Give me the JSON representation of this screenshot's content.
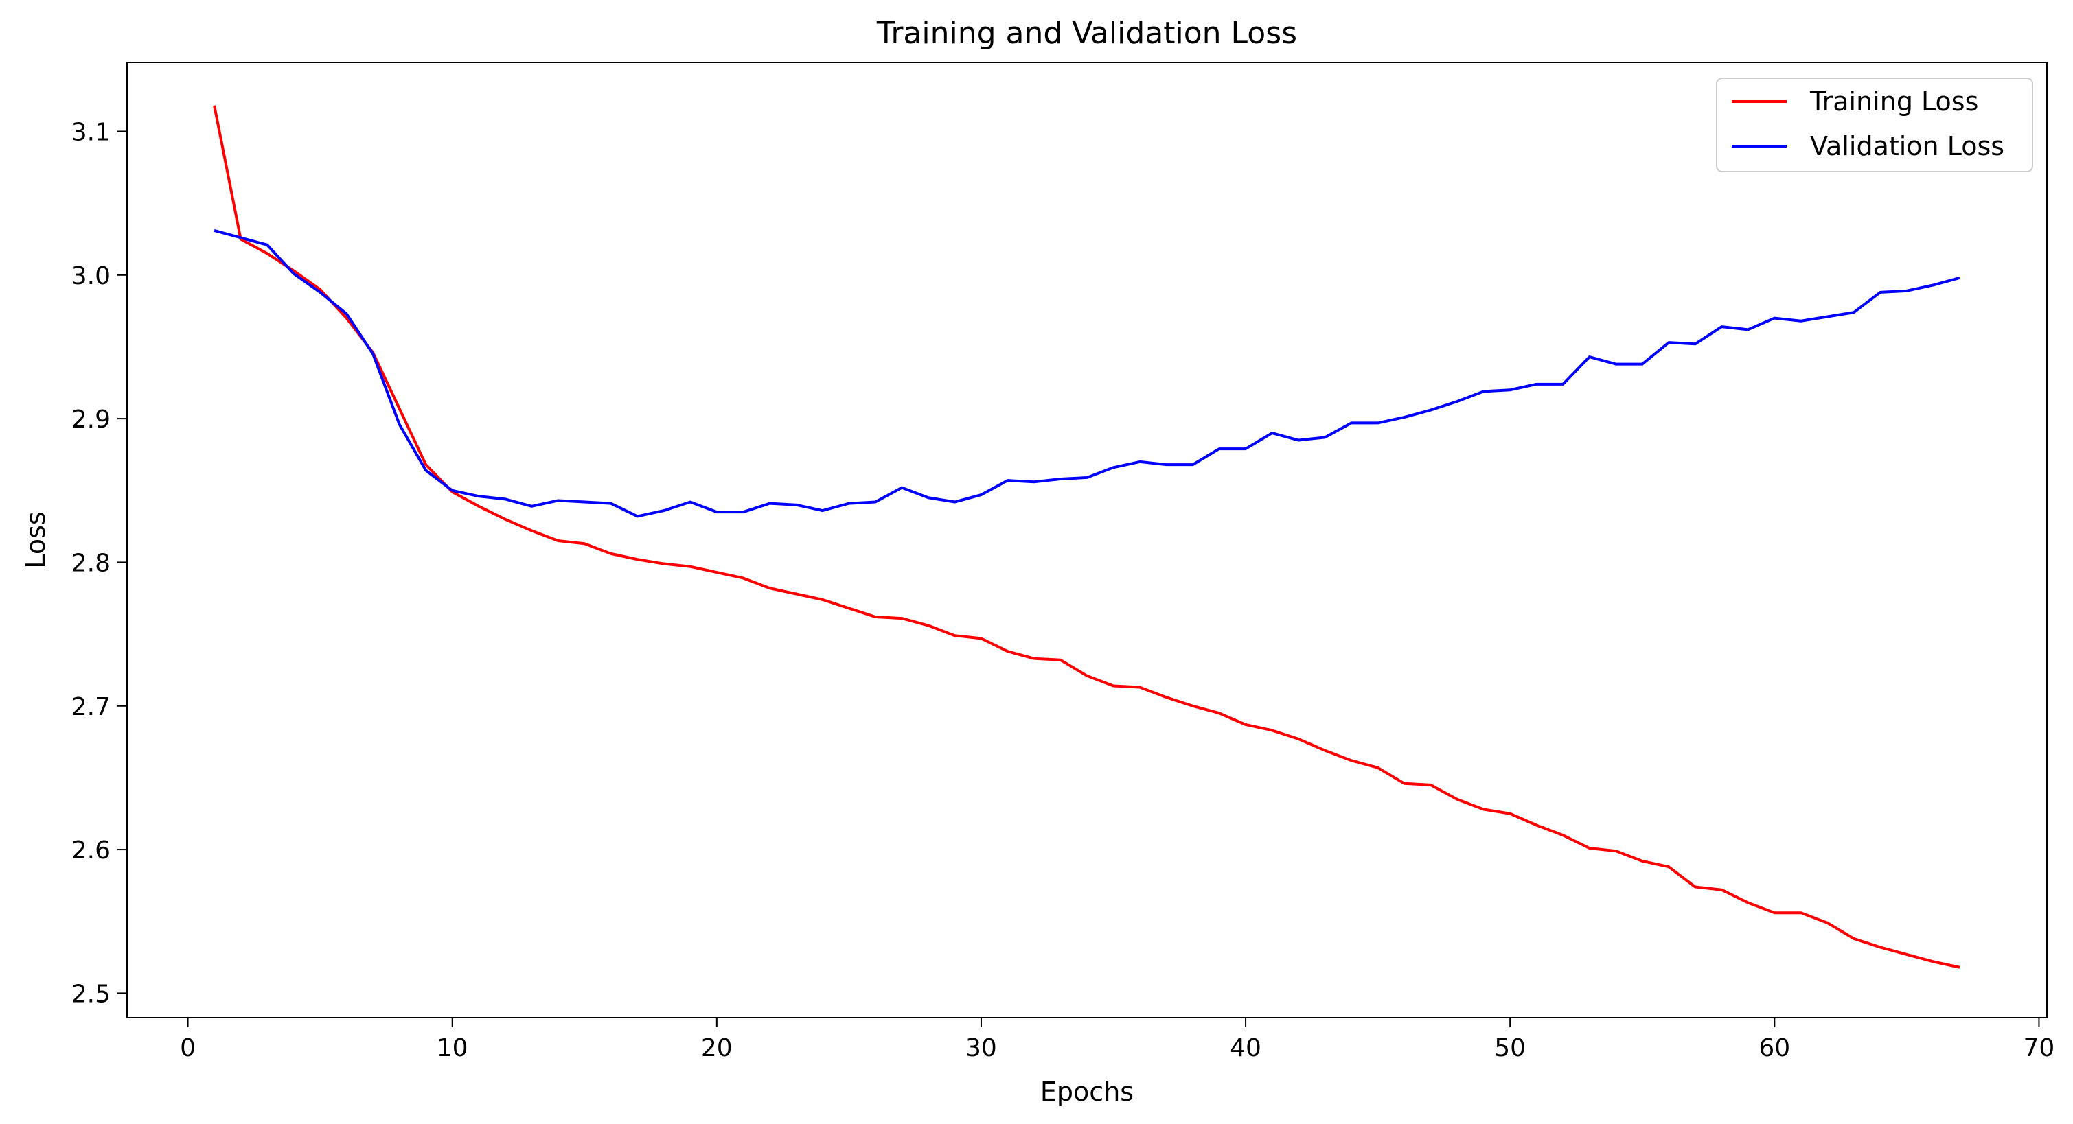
{
  "chart_data": {
    "type": "line",
    "title": "Training and Validation Loss",
    "xlabel": "Epochs",
    "ylabel": "Loss",
    "xlim": [
      -2.3,
      70.3
    ],
    "ylim": [
      2.483,
      3.148
    ],
    "xticks": [
      0,
      10,
      20,
      30,
      40,
      50,
      60,
      70
    ],
    "xtick_labels": [
      "0",
      "10",
      "20",
      "30",
      "40",
      "50",
      "60",
      "70"
    ],
    "yticks": [
      2.5,
      2.6,
      2.7,
      2.8,
      2.9,
      3.0,
      3.1
    ],
    "ytick_labels": [
      "2.5",
      "2.6",
      "2.7",
      "2.8",
      "2.9",
      "3.0",
      "3.1"
    ],
    "grid": false,
    "legend_position": "top-right",
    "x": [
      1,
      2,
      3,
      4,
      5,
      6,
      7,
      8,
      9,
      10,
      11,
      12,
      13,
      14,
      15,
      16,
      17,
      18,
      19,
      20,
      21,
      22,
      23,
      24,
      25,
      26,
      27,
      28,
      29,
      30,
      31,
      32,
      33,
      34,
      35,
      36,
      37,
      38,
      39,
      40,
      41,
      42,
      43,
      44,
      45,
      46,
      47,
      48,
      49,
      50,
      51,
      52,
      53,
      54,
      55,
      56,
      57,
      58,
      59,
      60,
      61,
      62,
      63,
      64,
      65,
      66,
      67
    ],
    "series": [
      {
        "name": "Training Loss",
        "color": "#ff0000",
        "values": [
          3.118,
          3.025,
          3.015,
          3.003,
          2.99,
          2.97,
          2.946,
          2.907,
          2.868,
          2.849,
          2.839,
          2.83,
          2.822,
          2.815,
          2.813,
          2.806,
          2.802,
          2.799,
          2.797,
          2.793,
          2.789,
          2.782,
          2.778,
          2.774,
          2.768,
          2.762,
          2.761,
          2.756,
          2.749,
          2.747,
          2.738,
          2.733,
          2.732,
          2.721,
          2.714,
          2.713,
          2.706,
          2.7,
          2.695,
          2.687,
          2.683,
          2.677,
          2.669,
          2.662,
          2.657,
          2.646,
          2.645,
          2.635,
          2.628,
          2.625,
          2.617,
          2.61,
          2.601,
          2.599,
          2.592,
          2.588,
          2.574,
          2.572,
          2.563,
          2.556,
          2.556,
          2.549,
          2.538,
          2.532,
          2.527,
          2.522,
          2.518
        ]
      },
      {
        "name": "Validation Loss",
        "color": "#0000ff",
        "values": [
          3.031,
          3.026,
          3.021,
          3.001,
          2.988,
          2.973,
          2.945,
          2.896,
          2.864,
          2.85,
          2.846,
          2.844,
          2.839,
          2.843,
          2.842,
          2.841,
          2.832,
          2.836,
          2.842,
          2.835,
          2.835,
          2.841,
          2.84,
          2.836,
          2.841,
          2.842,
          2.852,
          2.845,
          2.842,
          2.847,
          2.857,
          2.856,
          2.858,
          2.859,
          2.866,
          2.87,
          2.868,
          2.868,
          2.879,
          2.879,
          2.89,
          2.885,
          2.887,
          2.897,
          2.897,
          2.901,
          2.906,
          2.912,
          2.919,
          2.92,
          2.924,
          2.924,
          2.943,
          2.938,
          2.938,
          2.953,
          2.952,
          2.964,
          2.962,
          2.97,
          2.968,
          2.971,
          2.974,
          2.988,
          2.989,
          2.993,
          2.998
        ]
      }
    ]
  }
}
